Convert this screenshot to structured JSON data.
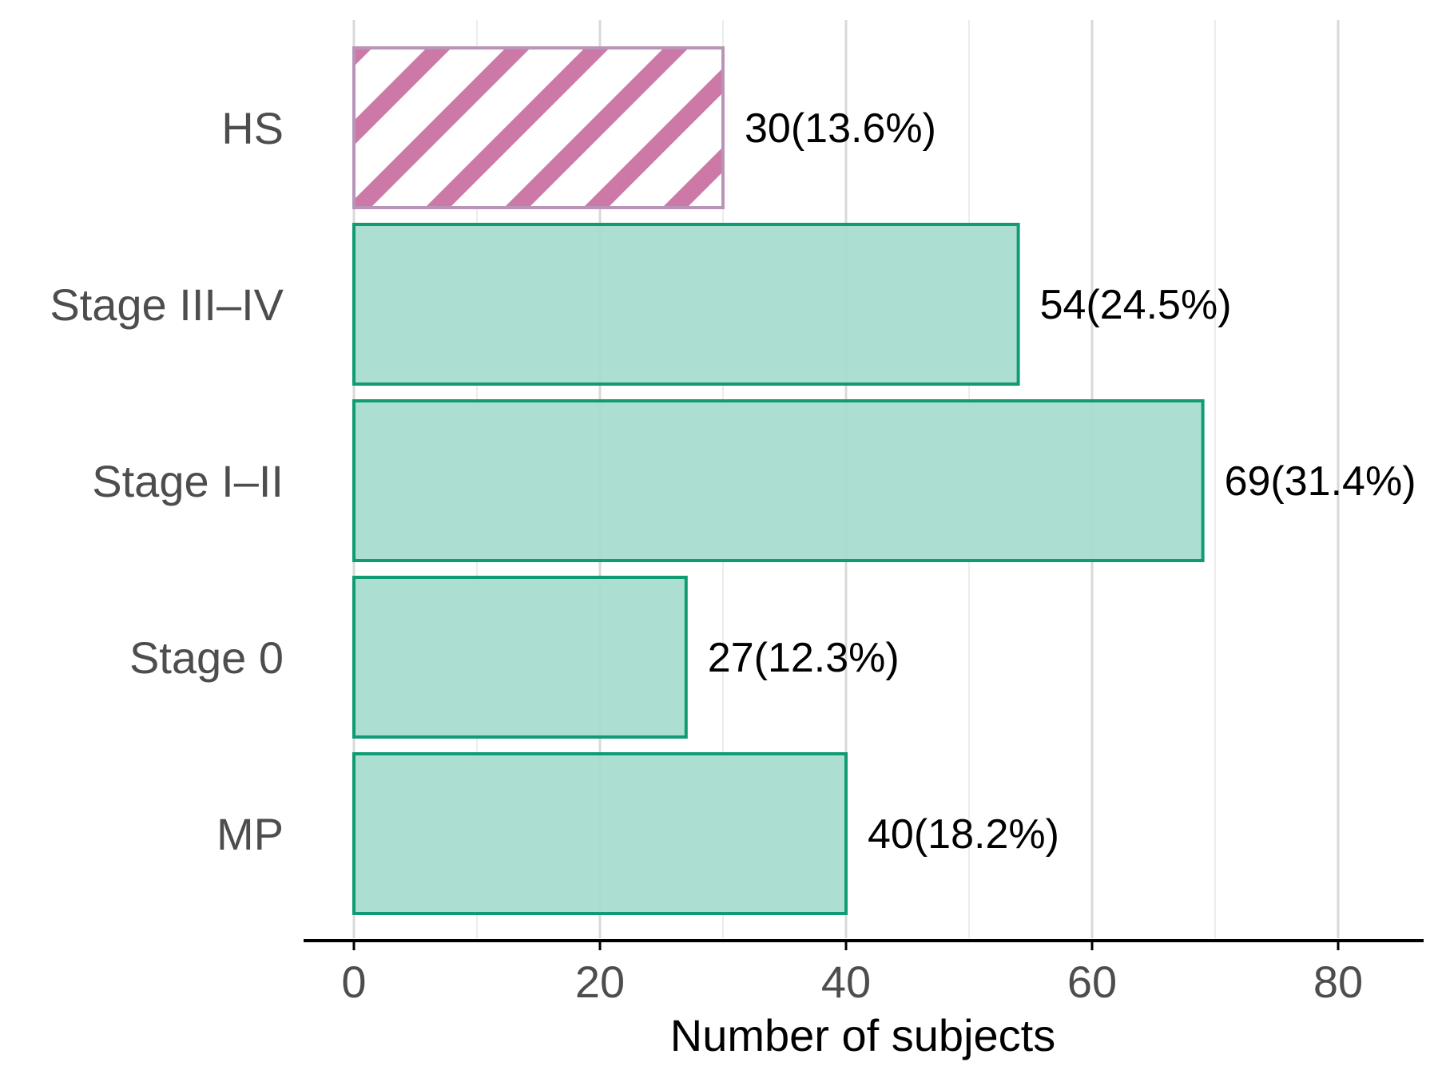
{
  "chart_data": {
    "type": "bar",
    "orientation": "horizontal",
    "title": "",
    "xlabel": "Number of subjects",
    "ylabel": "",
    "xlim": [
      0,
      85
    ],
    "x_ticks": [
      0,
      20,
      40,
      60,
      80
    ],
    "grid": "vertical",
    "categories": [
      "HS",
      "Stage III–IV",
      "Stage I–II",
      "Stage 0",
      "MP"
    ],
    "values": [
      30,
      54,
      69,
      27,
      40
    ],
    "data_labels": [
      "30(13.6%)",
      "54(24.5%)",
      "69(31.4%)",
      "27(12.3%)",
      "40(18.2%)"
    ],
    "bar_styles": [
      "hatched",
      "solid",
      "solid",
      "solid",
      "solid"
    ],
    "colors": {
      "solid_fill": "#a8ddcf",
      "solid_stroke": "#119b75",
      "hatch_color": "#cd79a8",
      "hatch_stroke": "#b895b8",
      "grid_major": "#d9d9d9",
      "grid_minor": "#ececec",
      "axis": "#000000"
    }
  }
}
